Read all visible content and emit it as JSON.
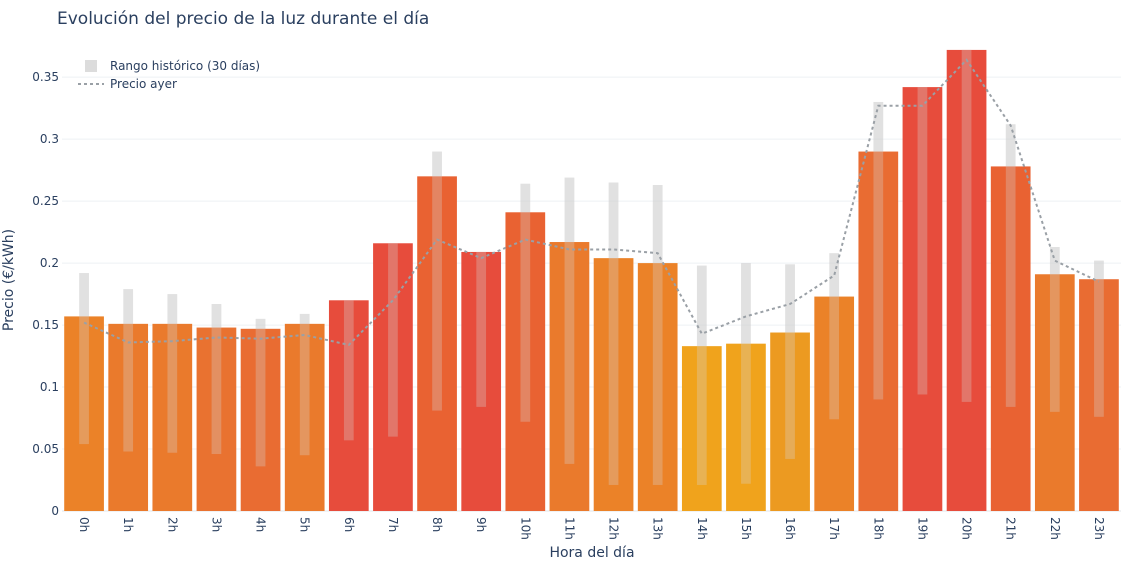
{
  "chart_data": {
    "type": "bar",
    "title": "Evolución del precio de la luz durante el día",
    "xlabel": "Hora del día",
    "ylabel": "Precio (€/kWh)",
    "ylim": [
      0,
      0.38
    ],
    "yticks": [
      0,
      0.05,
      0.1,
      0.15,
      0.2,
      0.25,
      0.3,
      0.35
    ],
    "ytick_labels": [
      "0",
      "0.05",
      "0.1",
      "0.15",
      "0.2",
      "0.25",
      "0.3",
      "0.35"
    ],
    "categories": [
      "0h",
      "1h",
      "2h",
      "3h",
      "4h",
      "5h",
      "6h",
      "7h",
      "8h",
      "9h",
      "10h",
      "11h",
      "12h",
      "13h",
      "14h",
      "15h",
      "16h",
      "17h",
      "18h",
      "19h",
      "20h",
      "21h",
      "22h",
      "23h"
    ],
    "values": [
      0.157,
      0.151,
      0.151,
      0.148,
      0.147,
      0.151,
      0.17,
      0.216,
      0.27,
      0.209,
      0.241,
      0.217,
      0.204,
      0.2,
      0.133,
      0.135,
      0.144,
      0.173,
      0.29,
      0.342,
      0.372,
      0.278,
      0.191,
      0.187
    ],
    "bar_colors": [
      "#eb8228",
      "#ea7a2c",
      "#ea7a2c",
      "#e97230",
      "#e96c32",
      "#ea7a2c",
      "#e74c3c",
      "#e74c3c",
      "#e96232",
      "#e74c3c",
      "#e96232",
      "#ea7a2c",
      "#eb8228",
      "#eb8228",
      "#f0a31c",
      "#f0a31c",
      "#ec9a21",
      "#eb8228",
      "#e96c32",
      "#e74c3c",
      "#e74c3c",
      "#e96232",
      "#ea7a2c",
      "#e96c32"
    ],
    "series": [
      {
        "name": "Rango histórico (30 días)",
        "type": "range",
        "color": "#cfcfcf",
        "low": [
          0.054,
          0.048,
          0.047,
          0.046,
          0.036,
          0.045,
          0.057,
          0.06,
          0.081,
          0.084,
          0.072,
          0.038,
          0.021,
          0.021,
          0.021,
          0.022,
          0.042,
          0.074,
          0.09,
          0.094,
          0.088,
          0.084,
          0.08,
          0.076
        ],
        "high": [
          0.192,
          0.179,
          0.175,
          0.167,
          0.155,
          0.159,
          0.17,
          0.216,
          0.29,
          0.209,
          0.264,
          0.269,
          0.265,
          0.263,
          0.198,
          0.2,
          0.199,
          0.208,
          0.33,
          0.342,
          0.372,
          0.312,
          0.213,
          0.202
        ]
      },
      {
        "name": "Precio ayer",
        "type": "line",
        "color": "#9aa0a6",
        "values": [
          0.152,
          0.136,
          0.137,
          0.14,
          0.139,
          0.142,
          0.134,
          0.17,
          0.219,
          0.204,
          0.219,
          0.211,
          0.211,
          0.208,
          0.143,
          0.157,
          0.167,
          0.19,
          0.327,
          0.327,
          0.364,
          0.311,
          0.202,
          0.185
        ]
      }
    ],
    "grid": true,
    "legend_position": "top-left"
  }
}
